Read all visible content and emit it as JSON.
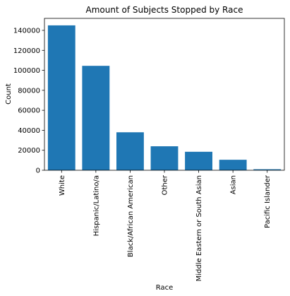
{
  "chart_data": {
    "type": "bar",
    "title": "Amount of Subjects Stopped by Race",
    "xlabel": "Race",
    "ylabel": "Count",
    "categories": [
      "White",
      "Hispanic/Latino/a",
      "Black/African American",
      "Other",
      "Middle Eastern or South Asian",
      "Asian",
      "Pacific Islander"
    ],
    "values": [
      145000,
      104500,
      38000,
      24000,
      18500,
      10500,
      1000
    ],
    "ylim": [
      0,
      152000
    ],
    "yticks": [
      0,
      20000,
      40000,
      60000,
      80000,
      100000,
      120000,
      140000
    ],
    "bar_color": "#1f77b4",
    "grid": false,
    "legend": null
  }
}
